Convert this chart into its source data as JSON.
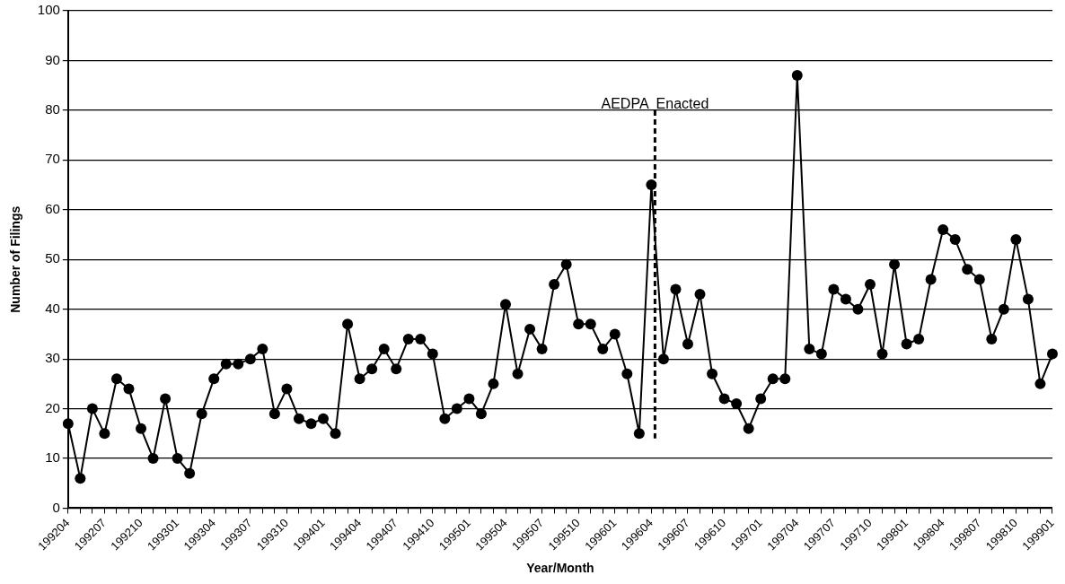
{
  "chart_data": {
    "type": "line",
    "xlabel": "Year/Month",
    "ylabel": "Number of Filings",
    "categories": [
      "199204",
      null,
      null,
      "199207",
      null,
      null,
      "199210",
      null,
      null,
      "199301",
      null,
      null,
      "199304",
      null,
      null,
      "199307",
      null,
      null,
      "199310",
      null,
      null,
      "199401",
      null,
      null,
      "199404",
      null,
      null,
      "199407",
      null,
      null,
      "199410",
      null,
      null,
      "199501",
      null,
      null,
      "199504",
      null,
      null,
      "199507",
      null,
      null,
      "199510",
      null,
      null,
      "199601",
      null,
      null,
      "199604",
      null,
      null,
      "199607",
      null,
      null,
      "199610",
      null,
      null,
      "199701",
      null,
      null,
      "199704",
      null,
      null,
      "199707",
      null,
      null,
      "199710",
      null,
      null,
      "199801",
      null,
      null,
      "199804",
      null,
      null,
      "199807",
      null,
      null,
      "199810",
      null,
      null,
      "199901"
    ],
    "series": [
      {
        "color": "#000000",
        "values": [
          17,
          6,
          20,
          15,
          26,
          24,
          16,
          10,
          22,
          10,
          7,
          19,
          26,
          29,
          29,
          30,
          32,
          19,
          24,
          18,
          17,
          18,
          15,
          37,
          26,
          28,
          32,
          28,
          34,
          34,
          31,
          18,
          20,
          22,
          19,
          25,
          41,
          27,
          36,
          32,
          45,
          49,
          37,
          37,
          32,
          35,
          27,
          15,
          65,
          30,
          44,
          33,
          43,
          27,
          22,
          21,
          16,
          22,
          26,
          26,
          87,
          32,
          31,
          44,
          42,
          40,
          45,
          31,
          49,
          33,
          34,
          46,
          56,
          54,
          48,
          46,
          34,
          40,
          54,
          42,
          25,
          31
        ]
      }
    ],
    "ylim": [
      0,
      100
    ],
    "yticks": [
      0,
      10,
      20,
      30,
      40,
      50,
      60,
      70,
      80,
      90,
      100
    ],
    "grid": "y",
    "legend": false,
    "marker": "circle",
    "line_style": "solid",
    "ref_lines": [
      {
        "axis": "x",
        "value": "199604",
        "line_style": "dashed",
        "color": "#000000"
      }
    ],
    "annotations": [
      {
        "text": "AEDPA  Enacted",
        "x": "199604",
        "y": 80
      }
    ]
  }
}
